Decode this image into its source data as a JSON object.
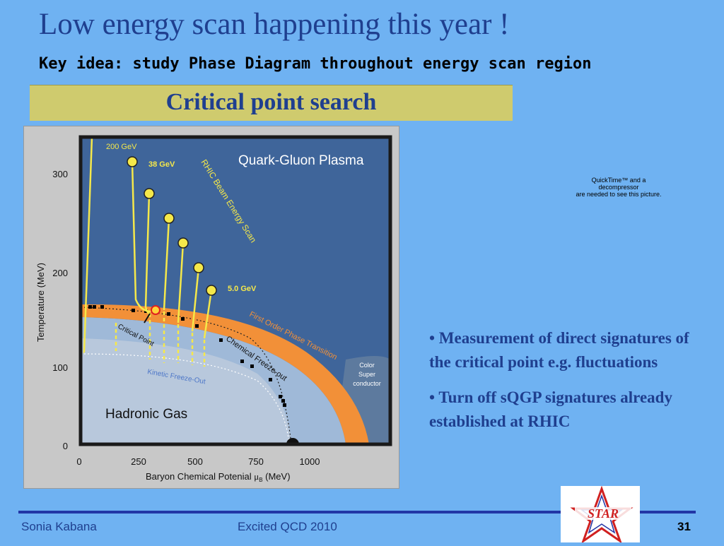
{
  "slide": {
    "title": "Low energy scan happening this year !",
    "subtitle": "Key idea: study Phase Diagram throughout energy scan region",
    "banner": "Critical point search",
    "quicktime_notice": [
      "QuickTime™ and a",
      "decompressor",
      "are needed to see this picture."
    ],
    "bullets": [
      "• Measurement of direct signatures of the critical point e.g. fluctuations",
      "• Turn off sQGP signatures already established at RHIC"
    ],
    "footer": {
      "author": "Sonia Kabana",
      "event": "Excited QCD 2010",
      "page": "31"
    },
    "logo_text": "STAR"
  },
  "figure": {
    "y_axis_label": "Temperature (MeV)",
    "x_axis_label_prefix": "Baryon Chemical Potenial ",
    "x_axis_label_mu": "μ",
    "x_axis_label_sub": "B",
    "x_axis_label_suffix": " (MeV)",
    "y_ticks": [
      "0",
      "100",
      "200",
      "300"
    ],
    "x_ticks": [
      "0",
      "250",
      "500",
      "750",
      "1000"
    ],
    "region_labels": {
      "qgp": "Quark-Gluon Plasma",
      "hadronic": "Hadronic Gas",
      "csc": [
        "Color",
        "Super",
        "conductor"
      ]
    },
    "curve_labels": {
      "first_order": "First Order Phase Transition",
      "chemical": "Chemical Freeze-out",
      "kinetic": "Kinetic Freeze-Out",
      "critical": "Critical Point",
      "scan": "RHIC Beam Energy Scan"
    },
    "energy_labels": {
      "e200": "200 GeV",
      "e38": "38 GeV",
      "e5": "5.0 GeV"
    },
    "colors": {
      "background_plot": "#3b5f8f",
      "qgp_region": "#3f659a",
      "hadronic_region": "#9fb9d8",
      "transition_band": "#f29038",
      "yellow_line": "#f5e84a",
      "frame": "#1a1a1a"
    }
  }
}
